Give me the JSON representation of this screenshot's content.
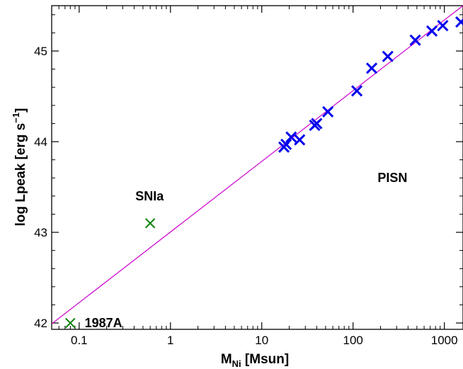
{
  "chart_data": {
    "type": "scatter",
    "x_scale": "log",
    "xlim": [
      0.05,
      1600
    ],
    "ylim": [
      41.93,
      45.5
    ],
    "x_ticks": [
      0.1,
      1,
      10,
      100,
      1000
    ],
    "x_tick_labels": [
      "0.1",
      "1",
      "10",
      "100",
      "1000"
    ],
    "y_ticks": [
      42,
      43,
      44,
      45
    ],
    "y_tick_labels": [
      "42",
      "43",
      "44",
      "45"
    ],
    "xlabel": {
      "main": "M",
      "sub": "Ni",
      "rest": " [Msun]"
    },
    "ylabel": {
      "main": "log Lpeak [erg s",
      "sup": "−1",
      "rest": "]"
    },
    "grid": false,
    "fit_line": {
      "color": "#cc00cc",
      "points": [
        [
          0.05,
          41.99
        ],
        [
          1600,
          45.5
        ]
      ]
    },
    "series": [
      {
        "color": "#0000ee",
        "marker": "x",
        "points": [
          [
            17.5,
            43.94
          ],
          [
            18.5,
            43.97
          ],
          [
            21,
            44.05
          ],
          [
            26,
            44.02
          ],
          [
            38,
            44.18
          ],
          [
            40,
            44.2
          ],
          [
            53,
            44.33
          ],
          [
            110,
            44.56
          ],
          [
            160,
            44.81
          ],
          [
            240,
            44.94
          ],
          [
            480,
            45.12
          ],
          [
            730,
            45.22
          ],
          [
            960,
            45.28
          ],
          [
            1520,
            45.32
          ]
        ]
      },
      {
        "color": "#008000",
        "marker": "x",
        "points": [
          [
            0.08,
            42.0
          ],
          [
            0.6,
            43.1
          ]
        ]
      }
    ],
    "annotations": [
      {
        "text": "SNIa",
        "x": 0.59,
        "y": 43.4,
        "anchor": "middle"
      },
      {
        "text": "PISN",
        "x": 270,
        "y": 43.6,
        "anchor": "middle"
      },
      {
        "text": "1987A",
        "x": 0.115,
        "y": 42.0,
        "anchor": "start"
      }
    ]
  }
}
